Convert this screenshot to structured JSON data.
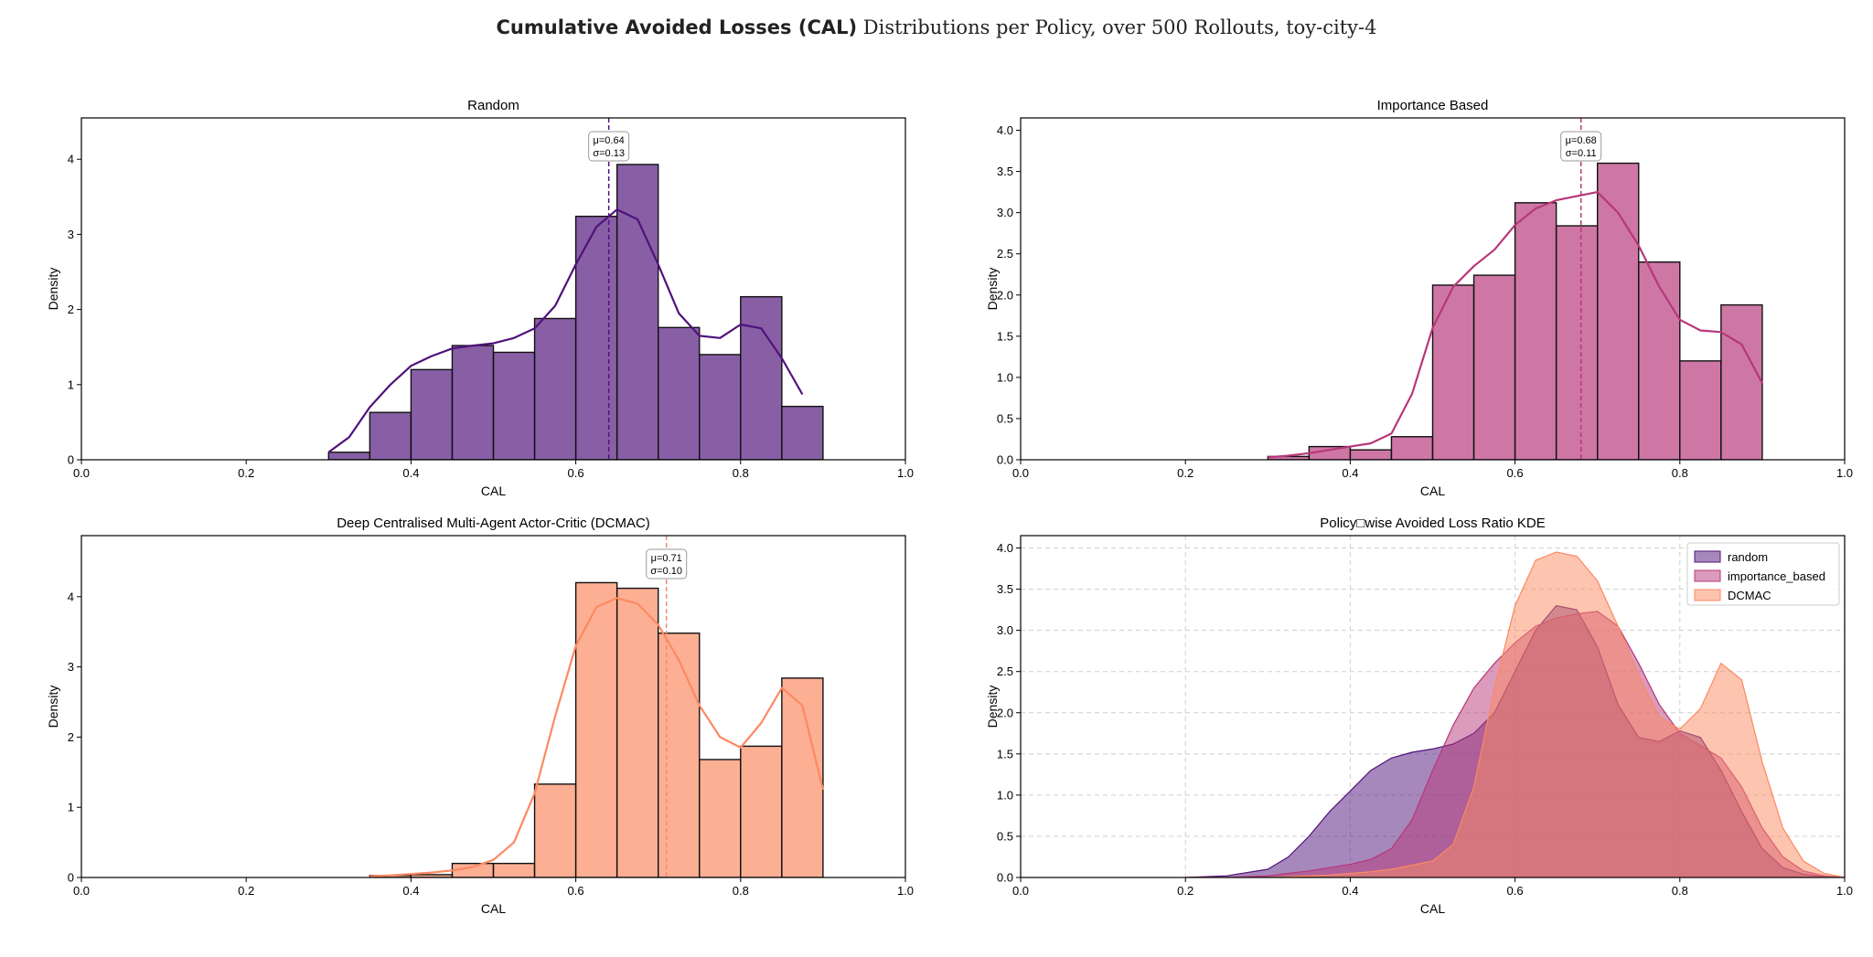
{
  "suptitle": {
    "bold": "Cumulative Avoided Losses (CAL)",
    "rest": "Distributions per Policy, over 500 Rollouts, toy-city-4"
  },
  "colors": {
    "random": "#50127b",
    "importance_based": "#b73779",
    "DCMAC": "#fc8961",
    "annotation_line_dcmac": "#e8907a"
  },
  "chart_data": [
    {
      "type": "bar",
      "title": "Random",
      "xlabel": "CAL",
      "ylabel": "Density",
      "xlim": [
        0.0,
        1.0
      ],
      "ylim": [
        0,
        4.55
      ],
      "xticks": [
        "0.0",
        "0.2",
        "0.4",
        "0.6",
        "0.8",
        "1.0"
      ],
      "yticks": [
        "0",
        "1",
        "2",
        "3",
        "4"
      ],
      "ytick_values": [
        0,
        1,
        2,
        3,
        4
      ],
      "grid": false,
      "bin_edges": [
        0.3,
        0.35,
        0.4,
        0.45,
        0.5,
        0.55,
        0.6,
        0.65,
        0.7,
        0.75,
        0.8,
        0.85,
        0.9
      ],
      "values": [
        0.1,
        0.63,
        1.2,
        1.52,
        1.43,
        1.88,
        3.24,
        3.93,
        1.76,
        1.4,
        2.17,
        0.71
      ],
      "kde": {
        "x": [
          0.3,
          0.325,
          0.35,
          0.375,
          0.4,
          0.425,
          0.45,
          0.475,
          0.5,
          0.525,
          0.55,
          0.575,
          0.6,
          0.625,
          0.65,
          0.675,
          0.7,
          0.725,
          0.75,
          0.775,
          0.8,
          0.825,
          0.85,
          0.875
        ],
        "y": [
          0.1,
          0.3,
          0.7,
          1.0,
          1.25,
          1.38,
          1.48,
          1.52,
          1.55,
          1.62,
          1.75,
          2.05,
          2.6,
          3.1,
          3.33,
          3.2,
          2.6,
          1.95,
          1.65,
          1.62,
          1.8,
          1.75,
          1.35,
          0.87
        ]
      },
      "mean": 0.64,
      "annotation": [
        "μ=0.64",
        "σ=0.13"
      ]
    },
    {
      "type": "bar",
      "title": "Importance Based",
      "xlabel": "CAL",
      "ylabel": "Density",
      "xlim": [
        0.0,
        1.0
      ],
      "ylim": [
        0,
        4.15
      ],
      "xticks": [
        "0.0",
        "0.2",
        "0.4",
        "0.6",
        "0.8",
        "1.0"
      ],
      "yticks": [
        "0.0",
        "0.5",
        "1.0",
        "1.5",
        "2.0",
        "2.5",
        "3.0",
        "3.5",
        "4.0"
      ],
      "ytick_values": [
        0,
        0.5,
        1.0,
        1.5,
        2.0,
        2.5,
        3.0,
        3.5,
        4.0
      ],
      "grid": false,
      "bin_edges": [
        0.3,
        0.35,
        0.4,
        0.45,
        0.5,
        0.55,
        0.6,
        0.65,
        0.7,
        0.75,
        0.8,
        0.85,
        0.9
      ],
      "values": [
        0.04,
        0.16,
        0.12,
        0.28,
        2.12,
        2.24,
        3.12,
        2.84,
        3.6,
        2.4,
        1.2,
        1.88
      ],
      "kde": {
        "x": [
          0.3,
          0.325,
          0.35,
          0.375,
          0.4,
          0.425,
          0.45,
          0.475,
          0.5,
          0.525,
          0.55,
          0.575,
          0.6,
          0.625,
          0.65,
          0.675,
          0.7,
          0.725,
          0.75,
          0.775,
          0.8,
          0.825,
          0.85,
          0.875,
          0.9
        ],
        "y": [
          0.03,
          0.05,
          0.08,
          0.12,
          0.16,
          0.2,
          0.32,
          0.8,
          1.6,
          2.1,
          2.35,
          2.55,
          2.85,
          3.05,
          3.15,
          3.2,
          3.25,
          3.0,
          2.6,
          2.1,
          1.7,
          1.57,
          1.55,
          1.4,
          0.93
        ]
      },
      "mean": 0.68,
      "annotation": [
        "μ=0.68",
        "σ=0.11"
      ]
    },
    {
      "type": "bar",
      "title": "Deep Centralised Multi-Agent Actor-Critic (DCMAC)",
      "xlabel": "CAL",
      "ylabel": "Density",
      "xlim": [
        0.0,
        1.0
      ],
      "ylim": [
        0,
        4.87
      ],
      "xticks": [
        "0.0",
        "0.2",
        "0.4",
        "0.6",
        "0.8",
        "1.0"
      ],
      "yticks": [
        "0",
        "1",
        "2",
        "3",
        "4"
      ],
      "ytick_values": [
        0,
        1,
        2,
        3,
        4
      ],
      "grid": false,
      "bin_edges": [
        0.35,
        0.4,
        0.45,
        0.5,
        0.55,
        0.6,
        0.65,
        0.7,
        0.75,
        0.8,
        0.85,
        0.9
      ],
      "values": [
        0.03,
        0.04,
        0.2,
        0.2,
        1.33,
        4.2,
        4.12,
        3.48,
        1.68,
        1.87,
        2.84
      ],
      "kde": {
        "x": [
          0.35,
          0.375,
          0.4,
          0.425,
          0.45,
          0.475,
          0.5,
          0.525,
          0.55,
          0.575,
          0.6,
          0.625,
          0.65,
          0.675,
          0.7,
          0.725,
          0.75,
          0.775,
          0.8,
          0.825,
          0.85,
          0.875,
          0.9
        ],
        "y": [
          0.02,
          0.03,
          0.05,
          0.07,
          0.1,
          0.15,
          0.25,
          0.5,
          1.2,
          2.3,
          3.3,
          3.85,
          3.98,
          3.9,
          3.6,
          3.1,
          2.45,
          2.0,
          1.85,
          2.2,
          2.7,
          2.45,
          1.25
        ]
      },
      "mean": 0.71,
      "annotation": [
        "μ=0.71",
        "σ=0.10"
      ]
    },
    {
      "type": "area",
      "title": "Policy□wise Avoided Loss Ratio KDE",
      "xlabel": "CAL",
      "ylabel": "Density",
      "xlim": [
        0.0,
        1.0
      ],
      "ylim": [
        0,
        4.15
      ],
      "xticks": [
        "0.0",
        "0.2",
        "0.4",
        "0.6",
        "0.8",
        "1.0"
      ],
      "yticks": [
        "0.0",
        "0.5",
        "1.0",
        "1.5",
        "2.0",
        "2.5",
        "3.0",
        "3.5",
        "4.0"
      ],
      "ytick_values": [
        0,
        0.5,
        1.0,
        1.5,
        2.0,
        2.5,
        3.0,
        3.5,
        4.0
      ],
      "grid": true,
      "legend": "top-right",
      "series": [
        {
          "name": "random",
          "x": [
            0.2,
            0.25,
            0.3,
            0.325,
            0.35,
            0.375,
            0.4,
            0.425,
            0.45,
            0.475,
            0.5,
            0.525,
            0.55,
            0.575,
            0.6,
            0.625,
            0.65,
            0.675,
            0.7,
            0.725,
            0.75,
            0.775,
            0.8,
            0.825,
            0.85,
            0.875,
            0.9,
            0.925,
            0.95,
            0.975,
            1.0
          ],
          "y": [
            0.0,
            0.02,
            0.1,
            0.25,
            0.5,
            0.8,
            1.05,
            1.3,
            1.45,
            1.52,
            1.56,
            1.62,
            1.75,
            2.0,
            2.5,
            3.0,
            3.3,
            3.25,
            2.8,
            2.1,
            1.7,
            1.65,
            1.78,
            1.7,
            1.3,
            0.8,
            0.35,
            0.12,
            0.04,
            0.01,
            0.0
          ]
        },
        {
          "name": "importance_based",
          "x": [
            0.2,
            0.25,
            0.3,
            0.325,
            0.35,
            0.375,
            0.4,
            0.425,
            0.45,
            0.475,
            0.5,
            0.525,
            0.55,
            0.575,
            0.6,
            0.625,
            0.65,
            0.675,
            0.7,
            0.725,
            0.75,
            0.775,
            0.8,
            0.825,
            0.85,
            0.875,
            0.9,
            0.925,
            0.95,
            0.975,
            1.0
          ],
          "y": [
            0.0,
            0.0,
            0.02,
            0.05,
            0.08,
            0.12,
            0.16,
            0.22,
            0.35,
            0.7,
            1.3,
            1.85,
            2.3,
            2.6,
            2.85,
            3.05,
            3.15,
            3.2,
            3.23,
            3.05,
            2.6,
            2.1,
            1.75,
            1.6,
            1.45,
            1.1,
            0.6,
            0.25,
            0.08,
            0.02,
            0.0
          ]
        },
        {
          "name": "DCMAC",
          "x": [
            0.2,
            0.25,
            0.3,
            0.325,
            0.35,
            0.375,
            0.4,
            0.425,
            0.45,
            0.475,
            0.5,
            0.525,
            0.55,
            0.575,
            0.6,
            0.625,
            0.65,
            0.675,
            0.7,
            0.725,
            0.75,
            0.775,
            0.8,
            0.825,
            0.85,
            0.875,
            0.9,
            0.925,
            0.95,
            0.975,
            1.0
          ],
          "y": [
            0.0,
            0.0,
            0.0,
            0.01,
            0.02,
            0.03,
            0.05,
            0.07,
            0.1,
            0.15,
            0.2,
            0.4,
            1.1,
            2.3,
            3.3,
            3.85,
            3.95,
            3.9,
            3.6,
            3.05,
            2.45,
            1.95,
            1.8,
            2.05,
            2.6,
            2.4,
            1.4,
            0.6,
            0.2,
            0.05,
            0.0
          ]
        }
      ]
    }
  ]
}
